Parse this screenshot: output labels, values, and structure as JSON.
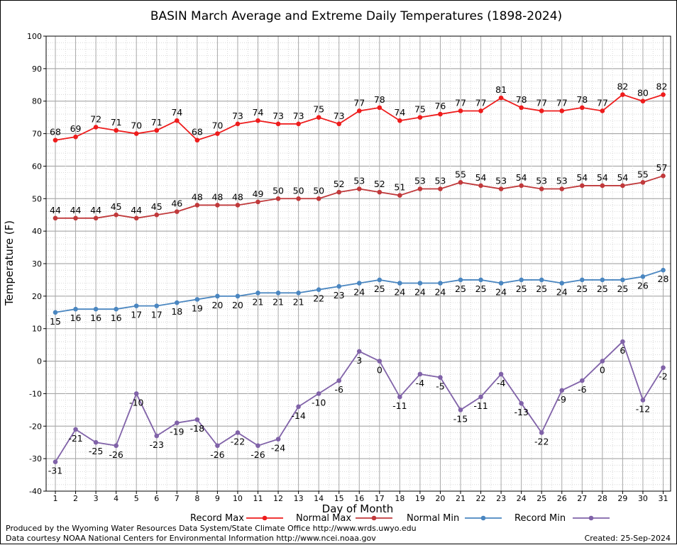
{
  "chart_data": {
    "type": "line",
    "title": "BASIN March Average and Extreme Daily Temperatures (1898-2024)",
    "xlabel": "Day of Month",
    "ylabel": "Temperature (F)",
    "ylim": [
      -40,
      100
    ],
    "yticks": [
      100,
      90,
      80,
      70,
      60,
      50,
      40,
      30,
      20,
      10,
      0,
      -10,
      -20,
      -30,
      -40
    ],
    "x": [
      1,
      2,
      3,
      4,
      5,
      6,
      7,
      8,
      9,
      10,
      11,
      12,
      13,
      14,
      15,
      16,
      17,
      18,
      19,
      20,
      21,
      22,
      23,
      24,
      25,
      26,
      27,
      28,
      29,
      30,
      31
    ],
    "grid": true,
    "series": [
      {
        "name": "Record Max",
        "color": "#ee1c1c",
        "values": [
          68,
          69,
          72,
          71,
          70,
          71,
          74,
          68,
          70,
          73,
          74,
          73,
          73,
          75,
          73,
          77,
          78,
          74,
          75,
          76,
          77,
          77,
          81,
          78,
          77,
          77,
          78,
          77,
          82,
          80,
          82
        ]
      },
      {
        "name": "Normal Max",
        "color": "#c0393b",
        "values": [
          44,
          44,
          44,
          45,
          44,
          45,
          46,
          48,
          48,
          48,
          49,
          50,
          50,
          50,
          52,
          53,
          52,
          51,
          53,
          53,
          55,
          54,
          53,
          54,
          53,
          53,
          54,
          54,
          54,
          55,
          57
        ]
      },
      {
        "name": "Normal Min",
        "color": "#4a86c0",
        "values": [
          15,
          16,
          16,
          16,
          17,
          17,
          18,
          19,
          20,
          20,
          21,
          21,
          21,
          22,
          23,
          24,
          25,
          24,
          24,
          24,
          25,
          25,
          24,
          25,
          25,
          24,
          25,
          25,
          25,
          26,
          28
        ]
      },
      {
        "name": "Record Min",
        "color": "#8062a8",
        "values": [
          -31,
          -21,
          -25,
          -26,
          -10,
          -23,
          -19,
          -18,
          -26,
          -22,
          -26,
          -24,
          -14,
          -10,
          -6,
          3,
          0,
          -11,
          -4,
          -5,
          -15,
          -11,
          -4,
          -13,
          -22,
          -9,
          -6,
          0,
          6,
          -12,
          -2
        ]
      }
    ],
    "legend_position": "bottom"
  },
  "footer": {
    "produced_by": "Produced by the Wyoming Water Resources Data System/State Climate Office http://www.wrds.uwyo.edu",
    "courtesy": "Data courtesy NOAA National Centers for Environmental Information http://www.ncei.noaa.gov",
    "created": "Created:  25-Sep-2024"
  }
}
